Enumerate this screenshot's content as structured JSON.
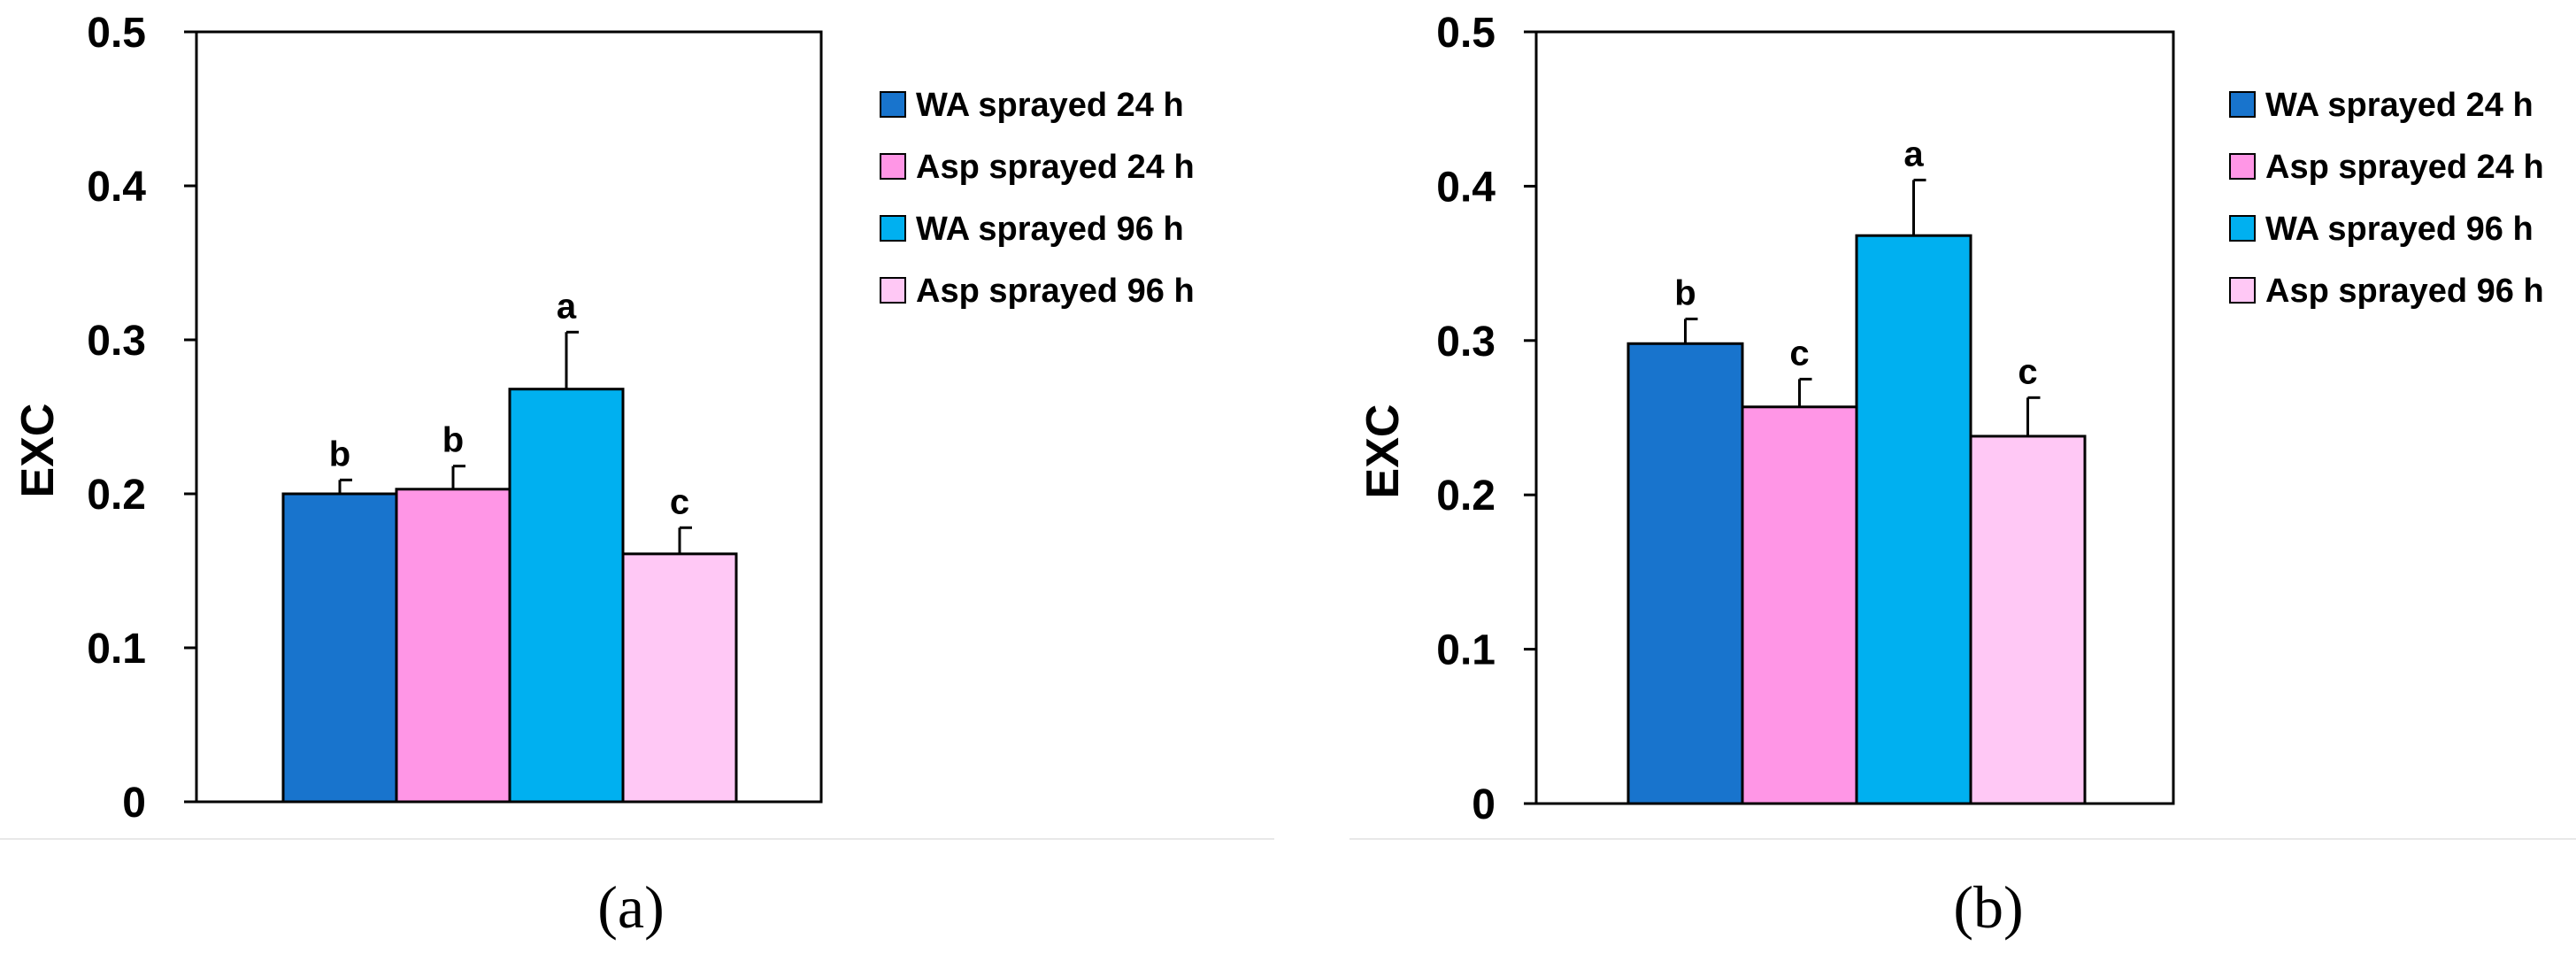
{
  "series_colors": [
    "#1874cd",
    "#ff96e6",
    "#00b0f0",
    "#ffc8f5"
  ],
  "chart_data": [
    {
      "type": "bar",
      "panel": "(a)",
      "ylabel": "EXC",
      "xlabel": "",
      "ylim": [
        0,
        0.5
      ],
      "yticks": [
        0,
        0.1,
        0.2,
        0.3,
        0.4,
        0.5
      ],
      "ytick_labels": [
        "0",
        "0.1",
        "0.2",
        "0.3",
        "0.4",
        "0.5"
      ],
      "legend_position": "right",
      "series": [
        {
          "name": "WA sprayed 24 h",
          "value": 0.2,
          "error": 0.009,
          "significance": "b"
        },
        {
          "name": "Asp sprayed 24 h",
          "value": 0.203,
          "error": 0.015,
          "significance": "b"
        },
        {
          "name": "WA sprayed 96 h",
          "value": 0.268,
          "error": 0.037,
          "significance": "a"
        },
        {
          "name": "Asp sprayed 96 h",
          "value": 0.161,
          "error": 0.017,
          "significance": "c"
        }
      ]
    },
    {
      "type": "bar",
      "panel": "(b)",
      "ylabel": "EXC",
      "xlabel": "",
      "ylim": [
        0,
        0.5
      ],
      "yticks": [
        0,
        0.1,
        0.2,
        0.3,
        0.4,
        0.5
      ],
      "ytick_labels": [
        "0",
        "0.1",
        "0.2",
        "0.3",
        "0.4",
        "0.5"
      ],
      "legend_position": "right",
      "series": [
        {
          "name": "WA sprayed 24 h",
          "value": 0.298,
          "error": 0.016,
          "significance": "b"
        },
        {
          "name": "Asp sprayed 24 h",
          "value": 0.257,
          "error": 0.018,
          "significance": "c"
        },
        {
          "name": "WA sprayed 96 h",
          "value": 0.368,
          "error": 0.036,
          "significance": "a"
        },
        {
          "name": "Asp sprayed 96 h",
          "value": 0.238,
          "error": 0.025,
          "significance": "c"
        }
      ]
    }
  ]
}
